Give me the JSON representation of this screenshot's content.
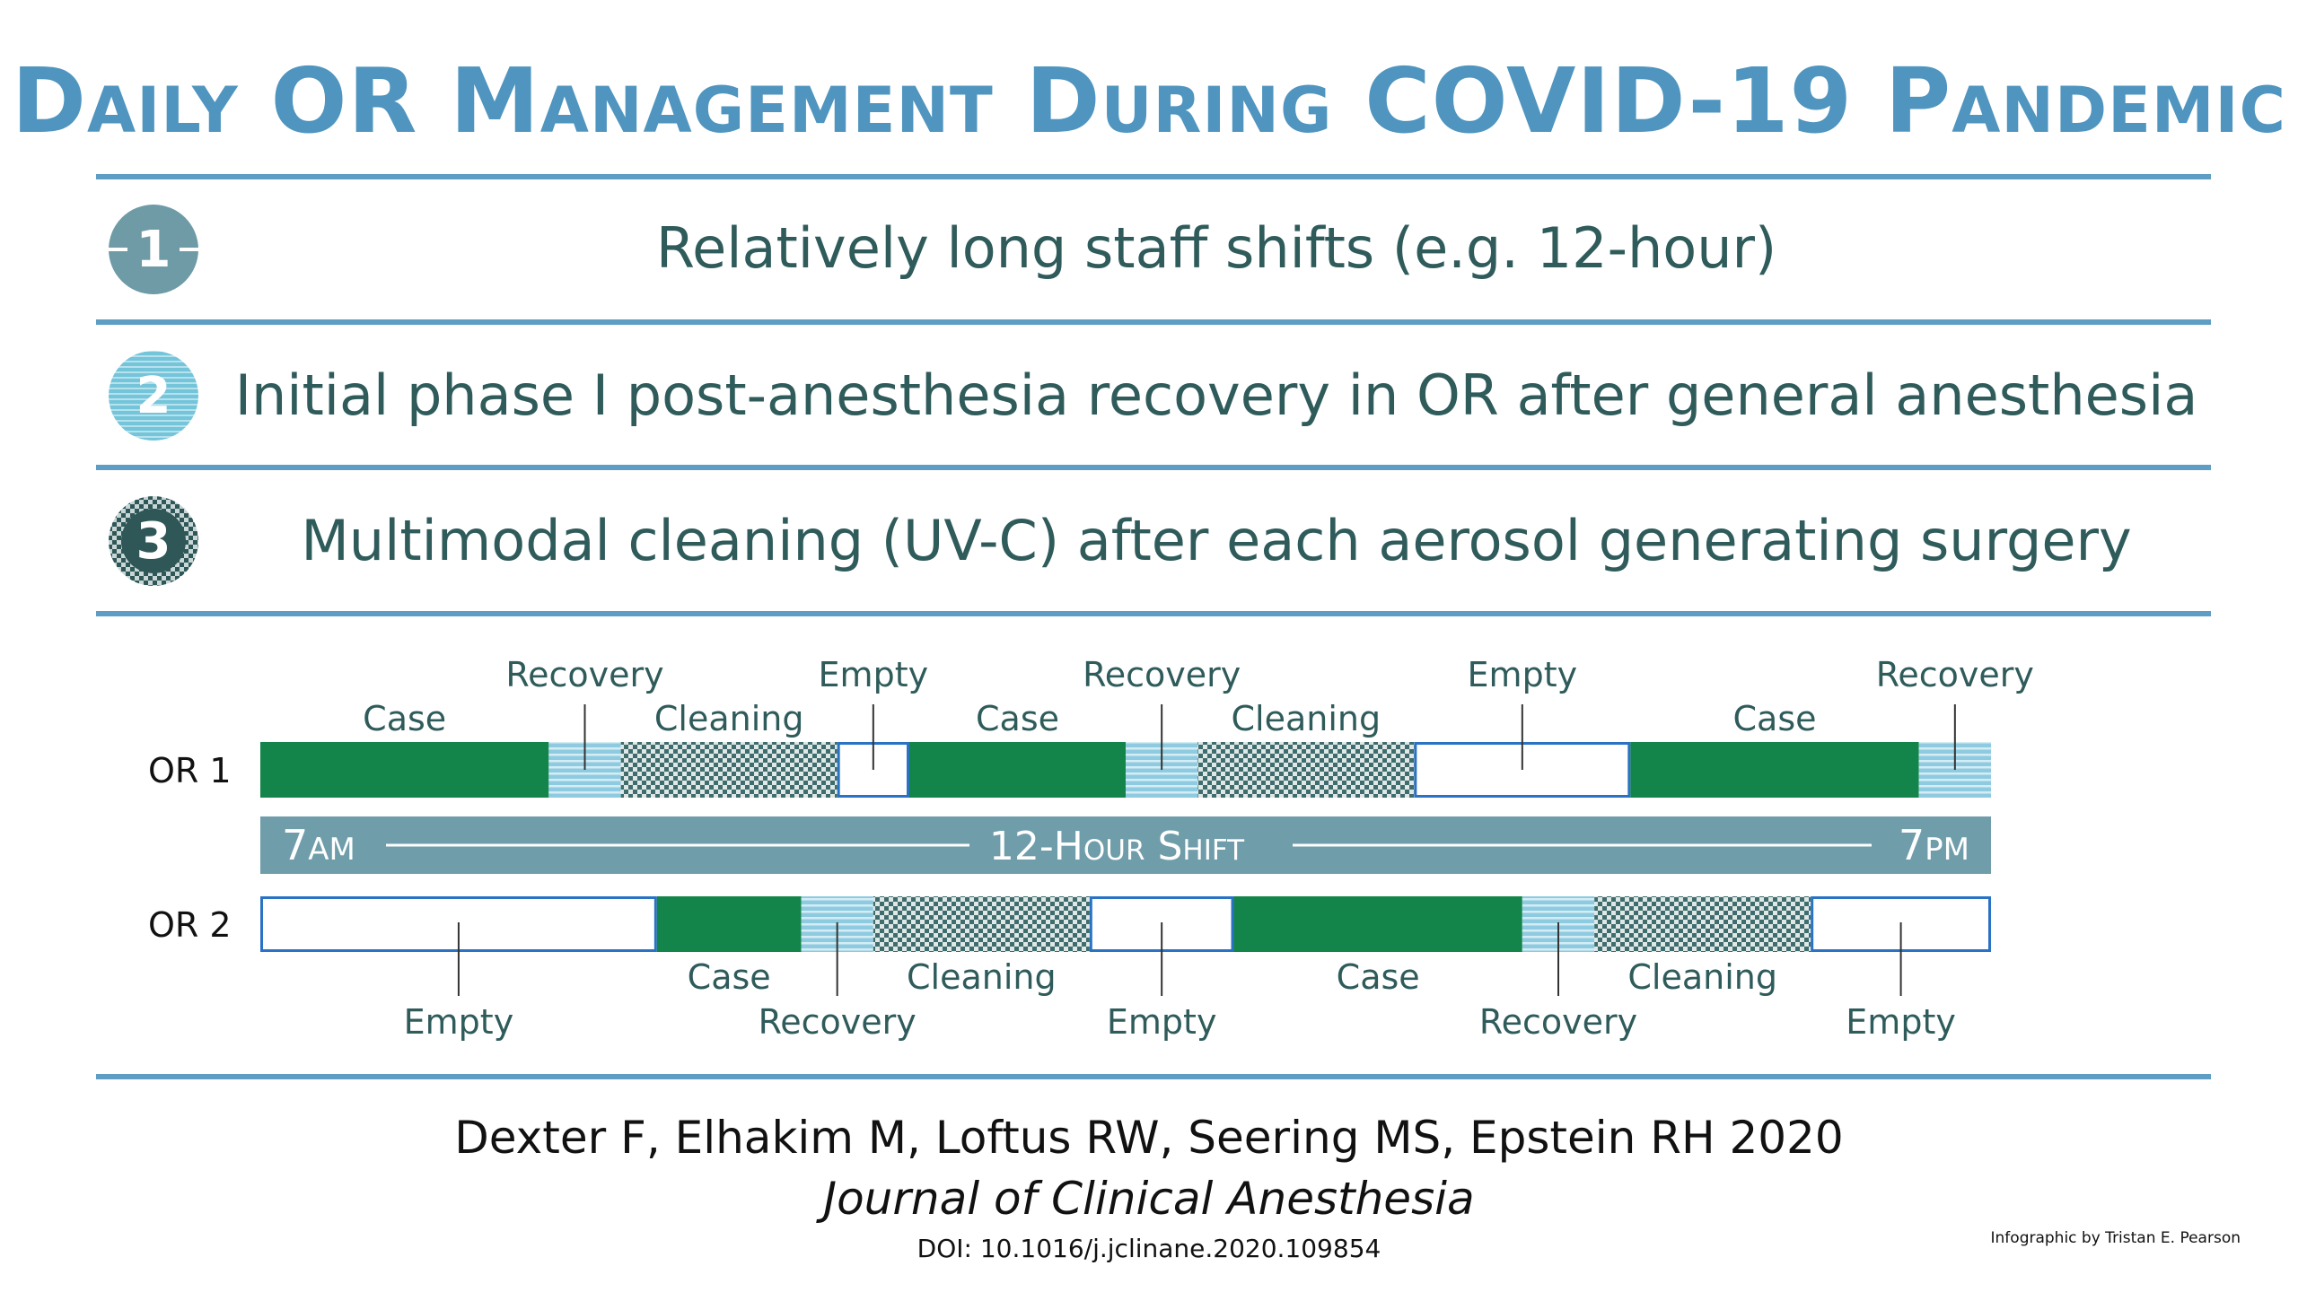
{
  "title": "Daily OR Management During COVID-19 Pandemic",
  "items": [
    {
      "number": "1",
      "text": "Relatively long staff shifts (e.g. 12-hour)"
    },
    {
      "number": "2",
      "text": "Initial phase I post-anesthesia recovery in OR after general anesthesia"
    },
    {
      "number": "3",
      "text": "Multimodal cleaning (UV-C) after each aerosol generating surgery"
    }
  ],
  "colors": {
    "title": "#4f95bf",
    "rule": "#5e9dc4",
    "badge1": "#6e9ba6",
    "badge2": "#74c4da",
    "badge3": "#2f5758",
    "case": "#13854a",
    "recovery": "#8fcbe0",
    "cleaning": "#3f6c6c",
    "empty_border": "#2a72c4",
    "shift_bar": "#6f9daa",
    "text": "#2f5b5b"
  },
  "chart_data": {
    "type": "timeline",
    "axis_range": [
      0,
      12
    ],
    "axis_unit": "hours",
    "shift": {
      "start": "7",
      "start_suffix": "AM",
      "end": "7",
      "end_suffix": "PM",
      "label": "12-Hour Shift"
    },
    "rows": [
      {
        "name": "OR 1",
        "segments": [
          {
            "type": "Case",
            "label": "Case",
            "start": 0,
            "end": 2.0
          },
          {
            "type": "Recovery",
            "label": "Recovery",
            "start": 2.0,
            "end": 2.5
          },
          {
            "type": "Cleaning",
            "label": "Cleaning",
            "start": 2.5,
            "end": 4.0
          },
          {
            "type": "Empty",
            "label": "Empty",
            "start": 4.0,
            "end": 4.5
          },
          {
            "type": "Case",
            "label": "Case",
            "start": 4.5,
            "end": 6.0
          },
          {
            "type": "Recovery",
            "label": "Recovery",
            "start": 6.0,
            "end": 6.5
          },
          {
            "type": "Cleaning",
            "label": "Cleaning",
            "start": 6.5,
            "end": 8.0
          },
          {
            "type": "Empty",
            "label": "Empty",
            "start": 8.0,
            "end": 9.5
          },
          {
            "type": "Case",
            "label": "Case",
            "start": 9.5,
            "end": 11.5
          },
          {
            "type": "Recovery",
            "label": "Recovery",
            "start": 11.5,
            "end": 12.0
          }
        ]
      },
      {
        "name": "OR 2",
        "segments": [
          {
            "type": "Empty",
            "label": "Empty",
            "start": 0,
            "end": 2.75
          },
          {
            "type": "Case",
            "label": "Case",
            "start": 2.75,
            "end": 3.75
          },
          {
            "type": "Recovery",
            "label": "Recovery",
            "start": 3.75,
            "end": 4.25
          },
          {
            "type": "Cleaning",
            "label": "Cleaning",
            "start": 4.25,
            "end": 5.75
          },
          {
            "type": "Empty",
            "label": "Empty",
            "start": 5.75,
            "end": 6.75
          },
          {
            "type": "Case",
            "label": "Case",
            "start": 6.75,
            "end": 8.75
          },
          {
            "type": "Recovery",
            "label": "Recovery",
            "start": 8.75,
            "end": 9.25
          },
          {
            "type": "Cleaning",
            "label": "Cleaning",
            "start": 9.25,
            "end": 10.75
          },
          {
            "type": "Empty",
            "label": "Empty",
            "start": 10.75,
            "end": 12.0
          }
        ]
      }
    ]
  },
  "citation": {
    "authors": "Dexter F, Elhakim M, Loftus RW, Seering MS, Epstein RH 2020",
    "journal": "Journal of Clinical Anesthesia",
    "doi": "DOI: 10.1016/j.jclinane.2020.109854"
  },
  "credit": "Infographic by Tristan E. Pearson"
}
